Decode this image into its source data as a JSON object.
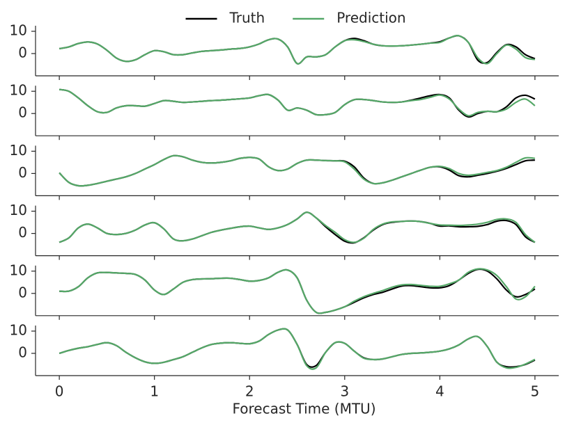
{
  "chart_data": [
    {
      "type": "line",
      "legend": "upper center",
      "x": [
        0,
        0.1,
        0.2,
        0.3,
        0.4,
        0.5,
        0.6,
        0.7,
        0.8,
        0.9,
        1,
        1.1,
        1.2,
        1.3,
        1.4,
        1.5,
        1.6,
        1.7,
        1.8,
        1.9,
        2,
        2.1,
        2.2,
        2.3,
        2.4,
        2.5,
        2.6,
        2.7,
        2.8,
        2.9,
        3,
        3.1,
        3.2,
        3.3,
        3.4,
        3.5,
        3.6,
        3.7,
        3.8,
        3.9,
        4,
        4.1,
        4.2,
        4.3,
        4.4,
        4.5,
        4.6,
        4.7,
        4.8,
        4.9,
        5
      ],
      "xlim": [
        -0.25,
        5.25
      ],
      "ylim": [
        -10,
        12.5
      ],
      "yticks": [
        0,
        10
      ],
      "series": [
        {
          "name": "Truth",
          "color": "#000000",
          "values": [
            2.2,
            3,
            4.5,
            5.2,
            4.3,
            1.5,
            -2,
            -3.5,
            -2.8,
            -0.5,
            1.3,
            0.8,
            -0.5,
            -0.5,
            0.3,
            1,
            1.3,
            1.6,
            2,
            2.3,
            3,
            4.3,
            6.2,
            6.5,
            3,
            -4.5,
            -1.5,
            -1.5,
            -0.5,
            3,
            5.8,
            6.8,
            5.8,
            4.2,
            3.5,
            3.4,
            3.5,
            3.8,
            4.2,
            4.7,
            5.3,
            7,
            8,
            5,
            -3,
            -4,
            0.5,
            4,
            3,
            -0.5,
            -2.3
          ]
        },
        {
          "name": "Prediction",
          "color": "#55a868",
          "values": [
            2.2,
            3,
            4.5,
            5.2,
            4.3,
            1.5,
            -2,
            -3.5,
            -2.8,
            -0.5,
            1.3,
            0.8,
            -0.5,
            -0.5,
            0.3,
            1,
            1.3,
            1.6,
            2,
            2.3,
            3,
            4.3,
            6.2,
            6.5,
            3,
            -4.5,
            -1.5,
            -1.5,
            -0.5,
            3,
            5.8,
            6.2,
            5.4,
            4.2,
            3.5,
            3.4,
            3.5,
            3.8,
            4.2,
            4.7,
            5,
            7,
            8,
            5,
            -2,
            -4.5,
            0,
            3.8,
            2,
            -1.8,
            -2.7
          ]
        }
      ]
    },
    {
      "type": "line",
      "x": [
        0,
        0.1,
        0.2,
        0.3,
        0.4,
        0.5,
        0.6,
        0.7,
        0.8,
        0.9,
        1,
        1.1,
        1.2,
        1.3,
        1.4,
        1.5,
        1.6,
        1.7,
        1.8,
        1.9,
        2,
        2.1,
        2.2,
        2.3,
        2.4,
        2.5,
        2.6,
        2.7,
        2.8,
        2.9,
        3,
        3.1,
        3.2,
        3.3,
        3.4,
        3.5,
        3.6,
        3.7,
        3.8,
        3.9,
        4,
        4.1,
        4.2,
        4.3,
        4.4,
        4.5,
        4.6,
        4.7,
        4.8,
        4.9,
        5
      ],
      "xlim": [
        -0.25,
        5.25
      ],
      "ylim": [
        -10,
        12.5
      ],
      "yticks": [
        0,
        10
      ],
      "series": [
        {
          "color": "#000000",
          "values": [
            10.8,
            10,
            7,
            3.5,
            0.8,
            0.5,
            2.5,
            3.5,
            3.5,
            3.3,
            4.5,
            5.8,
            5.5,
            5,
            5.2,
            5.5,
            5.8,
            6,
            6.3,
            6.6,
            7,
            8,
            8.5,
            6,
            1.5,
            2.5,
            1.5,
            -0.5,
            -0.5,
            0.5,
            4,
            6.2,
            6.3,
            5.8,
            5.2,
            5,
            5.2,
            6,
            7,
            8,
            8.5,
            7,
            1.5,
            -1.5,
            0,
            1,
            0.8,
            3,
            7,
            8.2,
            6.5
          ]
        },
        {
          "color": "#55a868",
          "values": [
            10.8,
            10,
            7,
            3.5,
            0.8,
            0.5,
            2.5,
            3.5,
            3.5,
            3.3,
            4.5,
            5.8,
            5.5,
            5,
            5.2,
            5.5,
            5.8,
            6,
            6.3,
            6.6,
            7,
            8,
            8.5,
            6,
            1.5,
            2.5,
            1.5,
            -0.5,
            -0.5,
            0.5,
            4,
            6.2,
            6.3,
            5.8,
            5.2,
            5,
            5.2,
            5.8,
            6.3,
            7.3,
            8.3,
            6.5,
            2,
            -1,
            0.5,
            1,
            0.8,
            2,
            5,
            6.5,
            3.5
          ]
        }
      ]
    },
    {
      "type": "line",
      "x": [
        0,
        0.1,
        0.2,
        0.3,
        0.4,
        0.5,
        0.6,
        0.7,
        0.8,
        0.9,
        1,
        1.1,
        1.2,
        1.3,
        1.4,
        1.5,
        1.6,
        1.7,
        1.8,
        1.9,
        2,
        2.1,
        2.2,
        2.3,
        2.4,
        2.5,
        2.6,
        2.7,
        2.8,
        2.9,
        3,
        3.1,
        3.2,
        3.3,
        3.4,
        3.5,
        3.6,
        3.7,
        3.8,
        3.9,
        4,
        4.1,
        4.2,
        4.3,
        4.4,
        4.5,
        4.6,
        4.7,
        4.8,
        4.9,
        5
      ],
      "xlim": [
        -0.25,
        5.25
      ],
      "ylim": [
        -10,
        12.5
      ],
      "yticks": [
        0,
        10
      ],
      "series": [
        {
          "color": "#000000",
          "values": [
            0.3,
            -4,
            -5.5,
            -5.3,
            -4.5,
            -3.5,
            -2.5,
            -1.5,
            0,
            2,
            4,
            6.3,
            8,
            7.5,
            6,
            5,
            4.7,
            5,
            5.7,
            6.8,
            7.2,
            6.5,
            3,
            1.3,
            2,
            4.5,
            6,
            6,
            5.8,
            5.7,
            5.5,
            3,
            -2,
            -4.5,
            -4.2,
            -3,
            -1.5,
            0,
            1.5,
            2.8,
            3,
            1.5,
            -1,
            -1.5,
            -0.8,
            0,
            1,
            2.3,
            4,
            5.7,
            6
          ]
        },
        {
          "color": "#55a868",
          "values": [
            0.3,
            -4,
            -5.5,
            -5.3,
            -4.5,
            -3.5,
            -2.5,
            -1.5,
            0,
            2,
            4,
            6.3,
            8,
            7.5,
            6,
            5,
            4.7,
            5,
            5.7,
            6.8,
            7.2,
            6.5,
            3,
            1.3,
            2,
            4.5,
            6,
            6,
            5.8,
            5.7,
            5.2,
            2,
            -2.5,
            -4.5,
            -4.2,
            -3,
            -1.5,
            0,
            1.5,
            2.8,
            3.2,
            2.2,
            0,
            -0.8,
            -0.3,
            0.5,
            1.3,
            2.8,
            5,
            7,
            6.8
          ]
        }
      ]
    },
    {
      "type": "line",
      "x": [
        0,
        0.1,
        0.2,
        0.3,
        0.4,
        0.5,
        0.6,
        0.7,
        0.8,
        0.9,
        1,
        1.1,
        1.2,
        1.3,
        1.4,
        1.5,
        1.6,
        1.7,
        1.8,
        1.9,
        2,
        2.1,
        2.2,
        2.3,
        2.4,
        2.5,
        2.6,
        2.7,
        2.8,
        2.9,
        3,
        3.1,
        3.2,
        3.3,
        3.4,
        3.5,
        3.6,
        3.7,
        3.8,
        3.9,
        4,
        4.1,
        4.2,
        4.3,
        4.4,
        4.5,
        4.6,
        4.7,
        4.8,
        4.9,
        5
      ],
      "xlim": [
        -0.25,
        5.25
      ],
      "ylim": [
        -10,
        12.5
      ],
      "yticks": [
        0,
        10
      ],
      "series": [
        {
          "color": "#000000",
          "values": [
            -4,
            -2,
            2.5,
            4.2,
            2.5,
            0,
            -0.5,
            0,
            1.5,
            3.8,
            4.8,
            2,
            -2.5,
            -3.3,
            -2.5,
            -1,
            0.5,
            1.5,
            2.3,
            3,
            3.3,
            2.5,
            1.8,
            2.5,
            4,
            6.5,
            9.5,
            7,
            3,
            -0.5,
            -3.5,
            -4.2,
            -2,
            1.5,
            4,
            5,
            5.4,
            5.6,
            5.3,
            4.5,
            3.3,
            3.4,
            3,
            3,
            3.2,
            4,
            5.5,
            5.8,
            4,
            -1.5,
            -4
          ]
        },
        {
          "color": "#55a868",
          "values": [
            -4,
            -2,
            2.5,
            4.2,
            2.5,
            0,
            -0.5,
            0,
            1.5,
            3.8,
            4.8,
            2,
            -2.5,
            -3.3,
            -2.5,
            -1,
            0.5,
            1.5,
            2.3,
            3,
            3.3,
            2.5,
            1.8,
            2.5,
            4,
            6.5,
            9.5,
            7,
            3.5,
            0.5,
            -2.8,
            -4,
            -2.2,
            1.8,
            4.2,
            5.2,
            5.4,
            5.6,
            5.3,
            4.5,
            3.8,
            3.7,
            3.6,
            3.8,
            4.2,
            5,
            6.3,
            6.5,
            5,
            -0.5,
            -4
          ]
        }
      ]
    },
    {
      "type": "line",
      "x": [
        0,
        0.1,
        0.2,
        0.3,
        0.4,
        0.5,
        0.6,
        0.7,
        0.8,
        0.9,
        1,
        1.1,
        1.2,
        1.3,
        1.4,
        1.5,
        1.6,
        1.7,
        1.8,
        1.9,
        2,
        2.1,
        2.2,
        2.3,
        2.4,
        2.5,
        2.6,
        2.7,
        2.8,
        2.9,
        3,
        3.1,
        3.2,
        3.3,
        3.4,
        3.5,
        3.6,
        3.7,
        3.8,
        3.9,
        4,
        4.1,
        4.2,
        4.3,
        4.4,
        4.5,
        4.6,
        4.7,
        4.8,
        4.9,
        5
      ],
      "xlim": [
        -0.25,
        5.25
      ],
      "ylim": [
        -10,
        12.5
      ],
      "yticks": [
        0,
        10
      ],
      "series": [
        {
          "color": "#000000",
          "values": [
            1,
            1,
            3,
            7,
            9.2,
            9.4,
            9.2,
            9,
            8.5,
            6,
            1.5,
            -0.5,
            2,
            5,
            6.2,
            6.5,
            6.6,
            6.8,
            6.8,
            6.2,
            5.5,
            5.8,
            7,
            9.5,
            10.5,
            7,
            -3,
            -8.5,
            -8.5,
            -7.5,
            -6,
            -4,
            -2,
            -0.5,
            0.5,
            2,
            3.3,
            3.5,
            3,
            2.5,
            2.5,
            3.5,
            6,
            9,
            10.8,
            10,
            6.5,
            1.5,
            -1.5,
            -0.5,
            2
          ]
        },
        {
          "color": "#55a868",
          "values": [
            1,
            1,
            3,
            7,
            9.2,
            9.4,
            9.2,
            9,
            8.5,
            6,
            1.5,
            -0.5,
            2,
            5,
            6.2,
            6.5,
            6.6,
            6.8,
            6.8,
            6.2,
            5.5,
            5.8,
            7,
            9.5,
            10.5,
            7,
            -3,
            -8.5,
            -8.5,
            -7.5,
            -6,
            -3.5,
            -1.5,
            0,
            1.3,
            2.8,
            3.8,
            4,
            3.6,
            3.2,
            3.2,
            4.3,
            6,
            9.5,
            11,
            10.5,
            8,
            3,
            -2.5,
            -1.5,
            3.2
          ]
        }
      ]
    },
    {
      "type": "line",
      "xlabel": "Forecast Time (MTU)",
      "x": [
        0,
        0.1,
        0.2,
        0.3,
        0.4,
        0.5,
        0.6,
        0.7,
        0.8,
        0.9,
        1,
        1.1,
        1.2,
        1.3,
        1.4,
        1.5,
        1.6,
        1.7,
        1.8,
        1.9,
        2,
        2.1,
        2.2,
        2.3,
        2.4,
        2.5,
        2.6,
        2.7,
        2.8,
        2.9,
        3,
        3.1,
        3.2,
        3.3,
        3.4,
        3.5,
        3.6,
        3.7,
        3.8,
        3.9,
        4,
        4.1,
        4.2,
        4.3,
        4.4,
        4.5,
        4.6,
        4.7,
        4.8,
        4.9,
        5
      ],
      "xlim": [
        -0.25,
        5.25
      ],
      "xticks": [
        0,
        1,
        2,
        3,
        4,
        5
      ],
      "ylim": [
        -10,
        12.5
      ],
      "yticks": [
        0,
        10
      ],
      "series": [
        {
          "color": "#000000",
          "values": [
            0,
            1.3,
            2.3,
            3,
            4,
            4.8,
            3.5,
            0.5,
            -2,
            -3.8,
            -4.5,
            -4,
            -2.8,
            -1.5,
            0.5,
            2.5,
            4,
            4.6,
            4.8,
            4.5,
            4.3,
            5.5,
            8.5,
            10.5,
            10.5,
            4,
            -5,
            -5.5,
            0.5,
            4.8,
            4.5,
            1,
            -2,
            -2.8,
            -2.5,
            -1.5,
            -0.5,
            0,
            0.2,
            0.5,
            1,
            2,
            3.8,
            6.5,
            7.5,
            3,
            -4,
            -6,
            -6,
            -5,
            -3
          ]
        },
        {
          "color": "#55a868",
          "values": [
            0,
            1.3,
            2.3,
            3,
            4,
            4.8,
            3.5,
            0.5,
            -2,
            -3.8,
            -4.5,
            -4,
            -2.8,
            -1.5,
            0.5,
            2.5,
            4,
            4.6,
            4.8,
            4.5,
            4.3,
            5.5,
            8.5,
            10.5,
            10.5,
            4,
            -5.5,
            -6.5,
            0.5,
            4.8,
            4.5,
            1,
            -2.2,
            -2.8,
            -2.5,
            -1.5,
            -0.5,
            0,
            0.2,
            0.5,
            1,
            2,
            3.8,
            6.5,
            7.5,
            3,
            -4,
            -6.5,
            -6.3,
            -4.8,
            -2.7
          ]
        }
      ]
    }
  ]
}
